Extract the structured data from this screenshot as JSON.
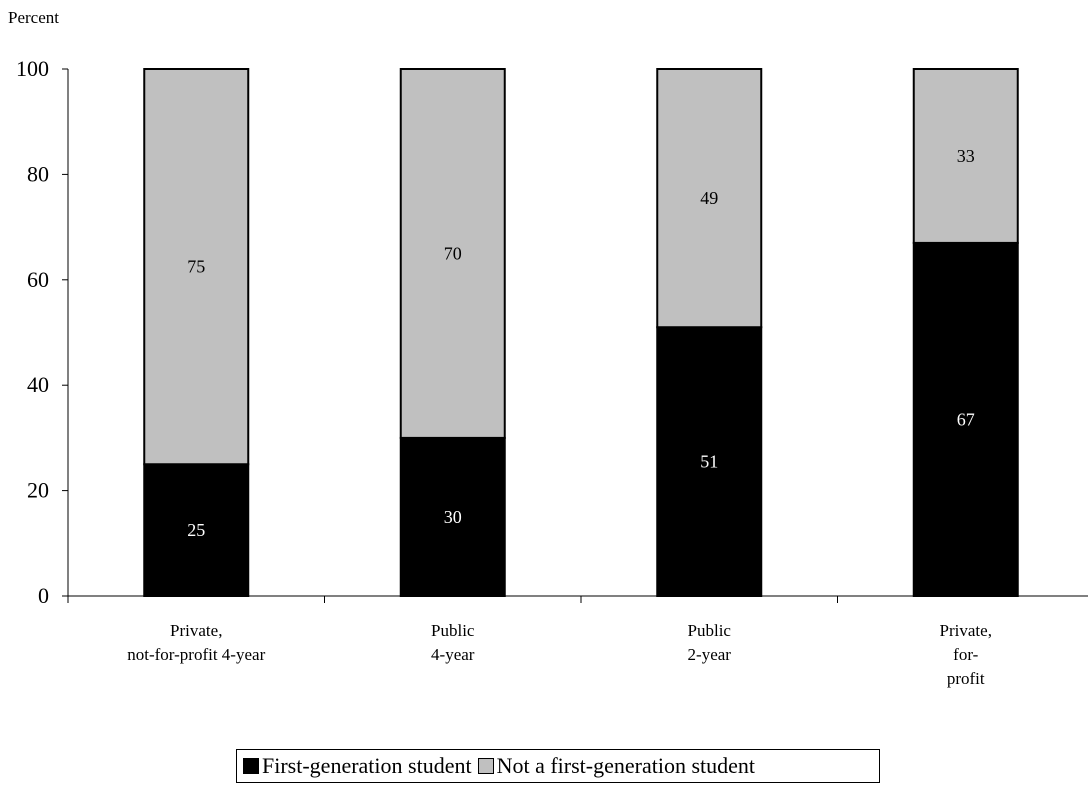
{
  "chart_data": {
    "type": "bar",
    "stacked": true,
    "ylabel": "Percent",
    "ylim": [
      0,
      100
    ],
    "yticks": [
      "0",
      "20",
      "40",
      "60",
      "80",
      "100"
    ],
    "categories": [
      [
        "Private,",
        "not-for-profit 4-year"
      ],
      [
        "Public",
        "4-year"
      ],
      [
        "Public",
        "2-year"
      ],
      [
        "Private,",
        "for-",
        "profit"
      ]
    ],
    "series": [
      {
        "name": "First-generation student",
        "values": [
          25,
          30,
          51,
          67
        ],
        "color": "#000000",
        "label_color": "#ffffff"
      },
      {
        "name": "Not a first-generation student",
        "values": [
          75,
          70,
          49,
          33
        ],
        "color": "#c0c0c0",
        "label_color": "#000000"
      }
    ],
    "legend_position": "bottom",
    "grid": false
  }
}
